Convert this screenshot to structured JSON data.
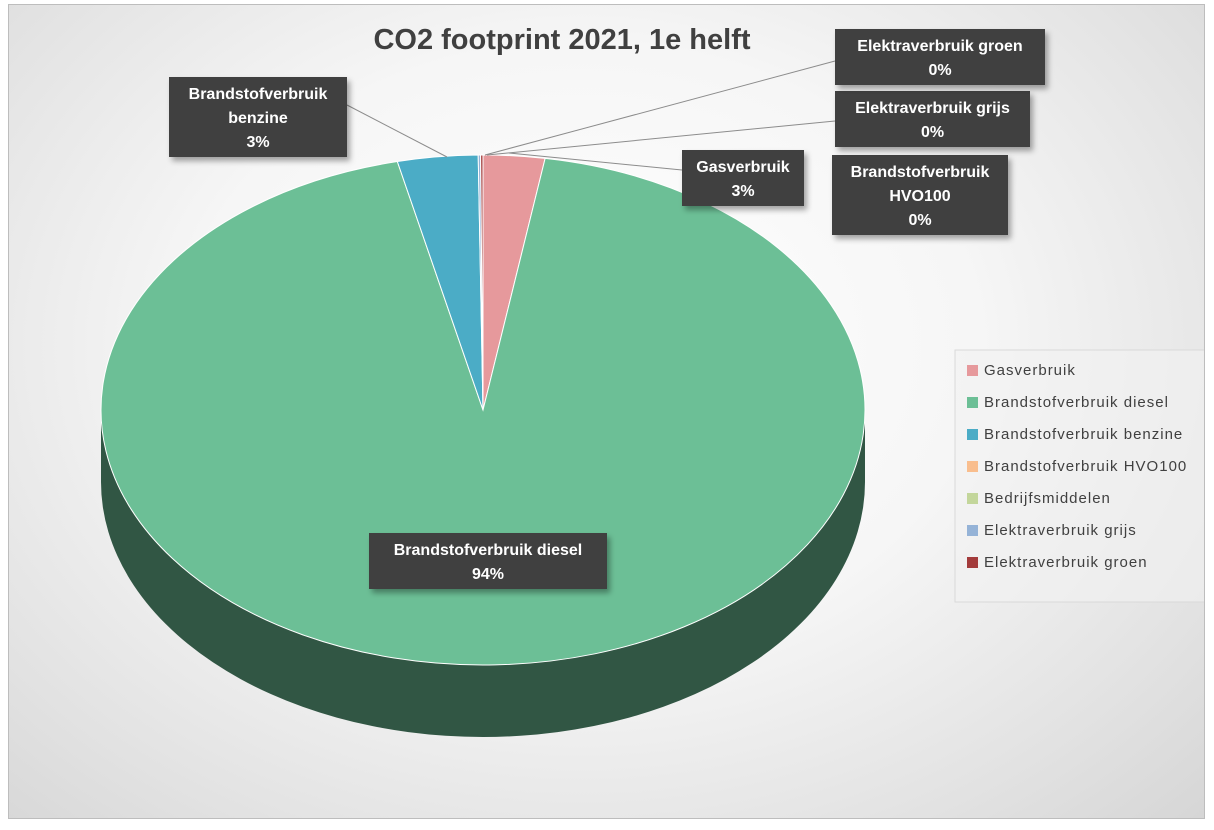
{
  "chart_data": {
    "type": "pie",
    "title": "CO2 footprint 2021, 1e helft",
    "series": [
      {
        "name": "Gasverbruik",
        "value": 2.6,
        "label_line1": "Gasverbruik",
        "label_line2": "",
        "pct_label": "3%",
        "color": "#E6999C"
      },
      {
        "name": "Brandstofverbruik diesel",
        "value": 93.8,
        "label_line1": "Brandstofverbruik diesel",
        "label_line2": "",
        "pct_label": "94%",
        "color": "#6CBF96"
      },
      {
        "name": "Brandstofverbruik benzine",
        "value": 3.4,
        "label_line1": "Brandstofverbruik",
        "label_line2": "benzine",
        "pct_label": "3%",
        "color": "#4BACC6"
      },
      {
        "name": "Brandstofverbruik HVO100",
        "value": 0.0,
        "label_line1": "Brandstofverbruik",
        "label_line2": "HVO100",
        "pct_label": "0%",
        "color": "#F9BE8E"
      },
      {
        "name": "Bedrijfsmiddelen",
        "value": 0.0,
        "label_line1": "",
        "label_line2": "",
        "pct_label": "",
        "color": "#C3D69B"
      },
      {
        "name": "Elektraverbruik grijs",
        "value": 0.1,
        "label_line1": "Elektraverbruik grijs",
        "label_line2": "",
        "pct_label": "0%",
        "color": "#95B3D7"
      },
      {
        "name": "Elektraverbruik groen",
        "value": 0.1,
        "label_line1": "Elektraverbruik groen",
        "label_line2": "",
        "pct_label": "0%",
        "color": "#A33B3B"
      }
    ],
    "legend_position": "right"
  }
}
